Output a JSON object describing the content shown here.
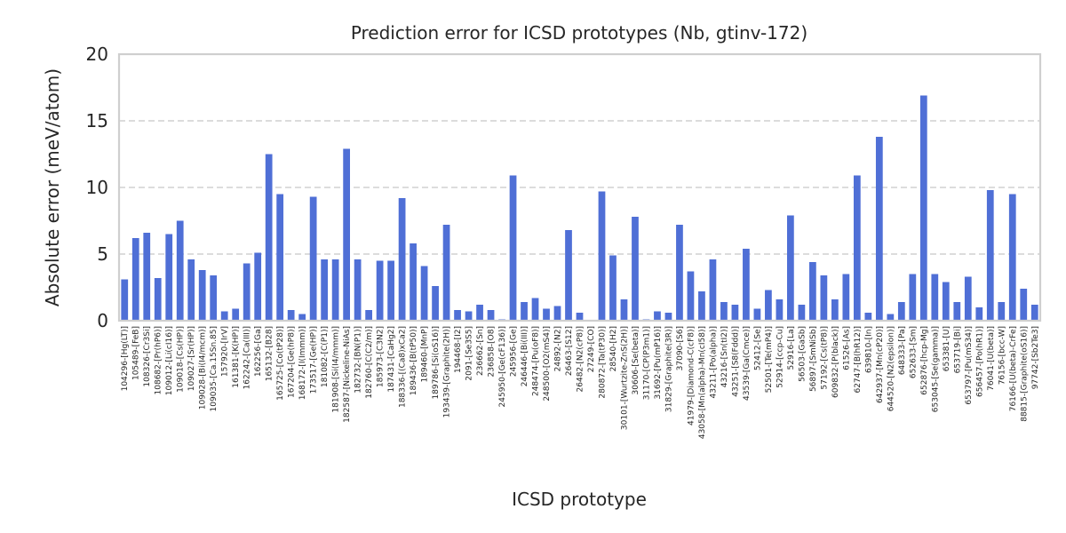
{
  "chart_data": {
    "type": "bar",
    "title": "Prediction error for ICSD prototypes (Nb, gtinv-172)",
    "xlabel": "ICSD prototype",
    "ylabel": "Absolute error (meV/atom)",
    "ylim": [
      0,
      20
    ],
    "yticks": [
      "0",
      "5",
      "10",
      "15",
      "20"
    ],
    "grid": "horizontal dashed",
    "bar_color": "#4f6fd6",
    "categories": [
      "104296-[Hg(LT)]",
      "105489-[FeB]",
      "108326-[Cr3Si]",
      "108682-[Pr(hP6)]",
      "109012-[Li(cI16)]",
      "109018-[Cs(HP)]",
      "109027-[Sr(HP)]",
      "109028-[Bi(I4/mcm)]",
      "109035-[Ca.15Sn.85]",
      "157920-[IrV]",
      "161381-[K(HP)]",
      "162242-[Ca(III)]",
      "162256-[Ga]",
      "165132-[B28]",
      "165725-[Co(tP28)]",
      "167204-[Ge(hP8)]",
      "168172-[I(Immm)]",
      "173517-[Ge(HP)]",
      "181082-[C(P1)]",
      "181908-[Si(I4/mmm)]",
      "182587-[Nickeline-NiAs]",
      "182732-[BN(P1)]",
      "182760-[C(C2/m)]",
      "185973-[C3N2]",
      "187431-[CaHg2]",
      "188336-[(Ca8)xCa2]",
      "189436-[B(tP50)]",
      "189460-[MnP]",
      "189786-[Si(oS16)]",
      "193439-[Graphite(2H)]",
      "194468-[I2]",
      "2091-[Se3S5]",
      "236662-[Sn]",
      "236858-[O8]",
      "245950-[Ge(cF136)]",
      "245956-[Ge]",
      "246446-[Bi(III)]",
      "248474-[Pu(oF8)]",
      "248500-[O2(mS4)]",
      "24892-[N2]",
      "26463-[S12]",
      "26482-[N2(cP8)]",
      "27249-[CO]",
      "280872-[Ta(tP30)]",
      "28540-[H2]",
      "30101-[Wurtzite-ZnS(2H)]",
      "30606-[Se(beta)]",
      "31170-[CP(P3m1)]",
      "31692-[Pu(mP16)]",
      "31829-[Graphite(3R)]",
      "37090-[S6]",
      "41979-[Diamond-C(cF8)]",
      "43058-[Mn(alpha)-Mn(cI58)]",
      "43211-[Po(alpha)]",
      "43216-[Sn(tI2)]",
      "43251-[S8(Fddd)]",
      "43539-[Ga(Cmce)]",
      "52412-[Se]",
      "52501-[Te(mP4)]",
      "52914-[ccp-Cu]",
      "52916-[La]",
      "56503-[GaSb]",
      "56897-[SmNiSb]",
      "57192-[Cs(tP8)]",
      "609832-[P(black)]",
      "61526-[As]",
      "62747-[B(hR12)]",
      "639810-[In]",
      "642937-[Mn(cP20)]",
      "644520-[N2(epsilon)]",
      "648333-[Pa]",
      "652633-[Sm]",
      "652876-[hcp-Mg]",
      "653045-[Se(gamma)]",
      "653381-[U]",
      "653719-[Bi]",
      "653797-[Pu(mS34)]",
      "656457-[Po(hR1)]",
      "76041-[U(beta)]",
      "76156-[bcc-W]",
      "76166-[U(beta)-CrFe]",
      "88815-[Graphite(oS16)]",
      "97742-[Sb2Te3]"
    ],
    "values": [
      3.1,
      6.2,
      6.6,
      3.2,
      6.5,
      7.5,
      4.6,
      3.8,
      3.4,
      0.7,
      0.9,
      4.3,
      5.1,
      12.5,
      9.5,
      0.8,
      0.5,
      9.3,
      4.6,
      4.6,
      12.9,
      4.6,
      0.8,
      4.5,
      4.5,
      9.2,
      5.8,
      4.1,
      2.6,
      7.2,
      0.8,
      0.7,
      1.2,
      0.8,
      0.1,
      10.9,
      1.4,
      1.7,
      0.9,
      1.1,
      6.8,
      0.6,
      0.0,
      9.7,
      4.9,
      1.6,
      7.8,
      0.1,
      0.7,
      0.6,
      7.2,
      3.7,
      2.2,
      4.6,
      1.4,
      1.2,
      5.4,
      0.9,
      2.3,
      1.6,
      7.9,
      1.2,
      4.4,
      3.4,
      1.6,
      3.5,
      10.9,
      0.6,
      13.8,
      0.5,
      1.4,
      3.5,
      16.9,
      3.5,
      2.9,
      1.4,
      3.3,
      1.0,
      9.8,
      1.4,
      9.5,
      2.4,
      1.2
    ]
  }
}
